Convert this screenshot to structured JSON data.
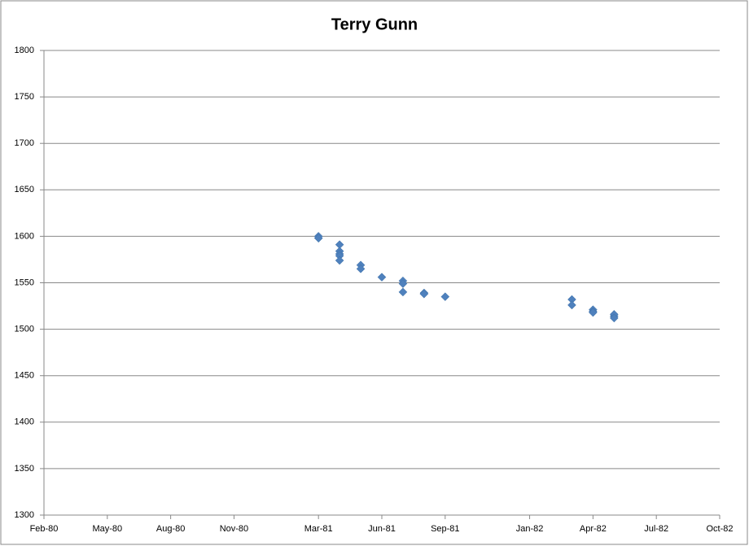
{
  "chart_data": {
    "type": "scatter",
    "title": "Terry Gunn",
    "x": [
      "1981-03",
      "1981-03",
      "1981-03",
      "1981-04",
      "1981-04",
      "1981-04",
      "1981-04",
      "1981-04",
      "1981-05",
      "1981-05",
      "1981-06",
      "1981-07",
      "1981-07",
      "1981-07",
      "1981-08",
      "1981-08",
      "1981-09",
      "1982-03",
      "1982-03",
      "1982-04",
      "1982-04",
      "1982-04",
      "1982-05",
      "1982-05",
      "1982-05"
    ],
    "series": [
      {
        "color": "#4f81bd",
        "values": [
          1600,
          1598,
          1598,
          1591,
          1584,
          1581,
          1579,
          1574,
          1569,
          1565,
          1556,
          1552,
          1549,
          1540,
          1539,
          1538,
          1535,
          1532,
          1526,
          1521,
          1519,
          1518,
          1514,
          1516,
          1512
        ]
      }
    ],
    "xlim": [
      "1980-02",
      "1982-10"
    ],
    "xticks": [
      {
        "value": "1980-02",
        "label": "Feb-80"
      },
      {
        "value": "1980-05",
        "label": "May-80"
      },
      {
        "value": "1980-08",
        "label": "Aug-80"
      },
      {
        "value": "1980-11",
        "label": "Nov-80"
      },
      {
        "value": "1981-03",
        "label": "Mar-81"
      },
      {
        "value": "1981-06",
        "label": "Jun-81"
      },
      {
        "value": "1981-09",
        "label": "Sep-81"
      },
      {
        "value": "1982-01",
        "label": "Jan-82"
      },
      {
        "value": "1982-04",
        "label": "Apr-82"
      },
      {
        "value": "1982-07",
        "label": "Jul-82"
      },
      {
        "value": "1982-10",
        "label": "Oct-82"
      }
    ],
    "ylim": [
      1300,
      1800
    ],
    "yticks": [
      1300,
      1350,
      1400,
      1450,
      1500,
      1550,
      1600,
      1650,
      1700,
      1750,
      1800
    ],
    "grid": true
  }
}
